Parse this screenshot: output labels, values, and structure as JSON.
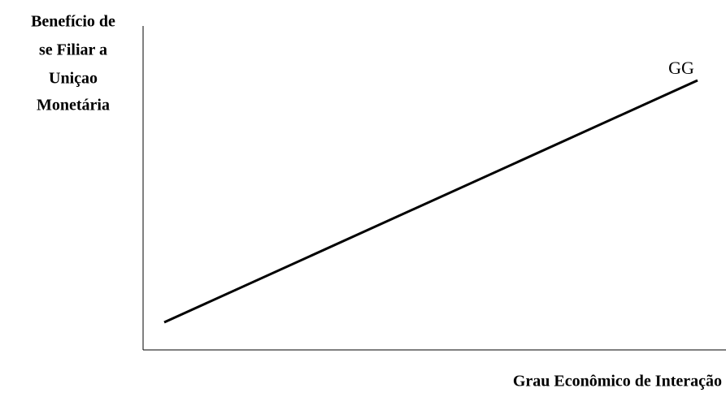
{
  "y_axis_label": {
    "lines": [
      "Benefício de",
      "se Filiar a",
      "Uniçao",
      "Monetária"
    ]
  },
  "x_axis_label": "Grau Econômico de Interação",
  "curve": {
    "label": "GG"
  }
}
